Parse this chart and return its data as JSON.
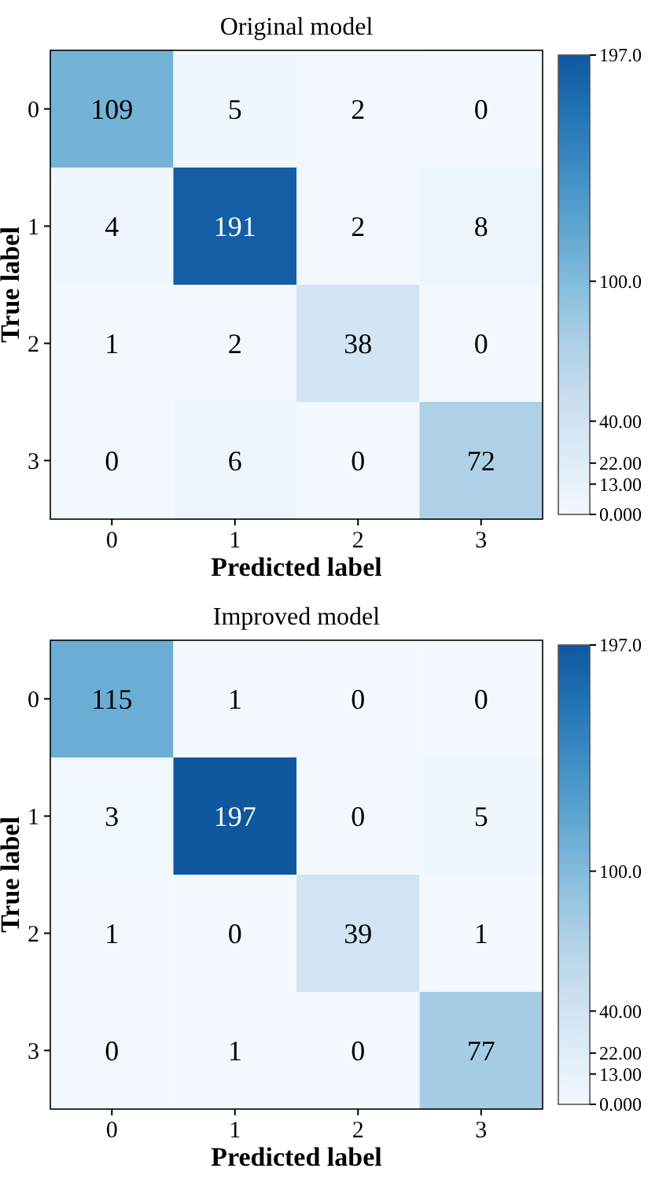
{
  "chart_data": [
    {
      "type": "heatmap",
      "title": "Original model",
      "xlabel": "Predicted label",
      "ylabel": "True label",
      "categories": [
        "0",
        "1",
        "2",
        "3"
      ],
      "y_categories": [
        "0",
        "1",
        "2",
        "3"
      ],
      "cells": [
        [
          109,
          5,
          2,
          0
        ],
        [
          4,
          191,
          2,
          8
        ],
        [
          1,
          2,
          38,
          0
        ],
        [
          0,
          6,
          0,
          72
        ]
      ],
      "clim": [
        0,
        197
      ],
      "cticks": [
        {
          "value": 0,
          "label": "0.000"
        },
        {
          "value": 13,
          "label": "13.00"
        },
        {
          "value": 22,
          "label": "22.00"
        },
        {
          "value": 40,
          "label": "40.00"
        },
        {
          "value": 100,
          "label": "100.0"
        },
        {
          "value": 197,
          "label": "197.0"
        }
      ],
      "data_labels": true
    },
    {
      "type": "heatmap",
      "title": "Improved model",
      "xlabel": "Predicted label",
      "ylabel": "True label",
      "categories": [
        "0",
        "1",
        "2",
        "3"
      ],
      "y_categories": [
        "0",
        "1",
        "2",
        "3"
      ],
      "cells": [
        [
          115,
          1,
          0,
          0
        ],
        [
          3,
          197,
          0,
          5
        ],
        [
          1,
          0,
          39,
          1
        ],
        [
          0,
          1,
          0,
          77
        ]
      ],
      "clim": [
        0,
        197
      ],
      "cticks": [
        {
          "value": 0,
          "label": "0.000"
        },
        {
          "value": 13,
          "label": "13.00"
        },
        {
          "value": 22,
          "label": "22.00"
        },
        {
          "value": 40,
          "label": "40.00"
        },
        {
          "value": 100,
          "label": "100.0"
        },
        {
          "value": 197,
          "label": "197.0"
        }
      ],
      "data_labels": true
    }
  ]
}
